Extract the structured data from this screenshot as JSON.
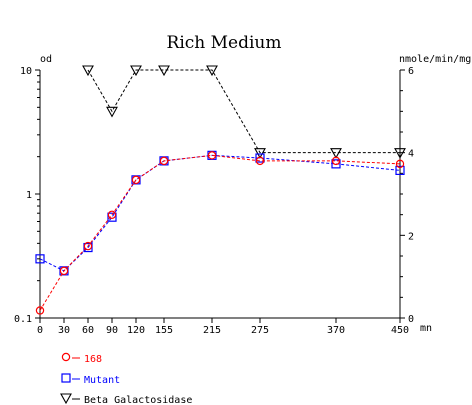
{
  "chart_data": {
    "type": "line",
    "title": "Rich Medium",
    "ylabel_left": "od",
    "ylabel_right": "nmole/min/mg",
    "xunit": "mn",
    "x_ticks": [
      0,
      30,
      60,
      90,
      120,
      155,
      215,
      275,
      370,
      450
    ],
    "x_tick_labels": [
      "0",
      "30",
      "60",
      "90",
      "120",
      "155",
      "215",
      "275",
      "370",
      "450"
    ],
    "xlim": [
      0,
      450
    ],
    "ylim_left": [
      0.1,
      10
    ],
    "yscale_left": "log",
    "y_left_tick_labels": [
      "0.1",
      "1",
      "10"
    ],
    "ylim_right": [
      0,
      6
    ],
    "y_right_ticks": [
      0,
      2,
      4,
      6
    ],
    "y_right_tick_labels": [
      "0",
      "2",
      "4",
      "6"
    ],
    "legend_position": "bottom-left",
    "series": [
      {
        "name": "168",
        "axis": "left",
        "marker": "circle",
        "color": "#ff0000",
        "x": [
          0,
          30,
          60,
          90,
          120,
          155,
          215,
          275,
          370,
          450
        ],
        "y": [
          0.115,
          0.24,
          0.38,
          0.68,
          1.3,
          1.85,
          2.05,
          1.85,
          1.85,
          1.75
        ]
      },
      {
        "name": "Mutant",
        "axis": "left",
        "marker": "square",
        "color": "#0000ff",
        "x": [
          0,
          30,
          60,
          90,
          120,
          155,
          215,
          275,
          370,
          450
        ],
        "y": [
          0.3,
          0.24,
          0.37,
          0.65,
          1.3,
          1.85,
          2.05,
          1.95,
          1.75,
          1.55
        ]
      },
      {
        "name": "Beta Galactosidase",
        "axis": "right",
        "marker": "triangle-down",
        "color": "#000000",
        "x": [
          60,
          90,
          120,
          155,
          215,
          275,
          370,
          450
        ],
        "y": [
          6.0,
          5.0,
          6.0,
          6.0,
          6.0,
          4.0,
          4.0,
          4.0
        ]
      }
    ]
  }
}
